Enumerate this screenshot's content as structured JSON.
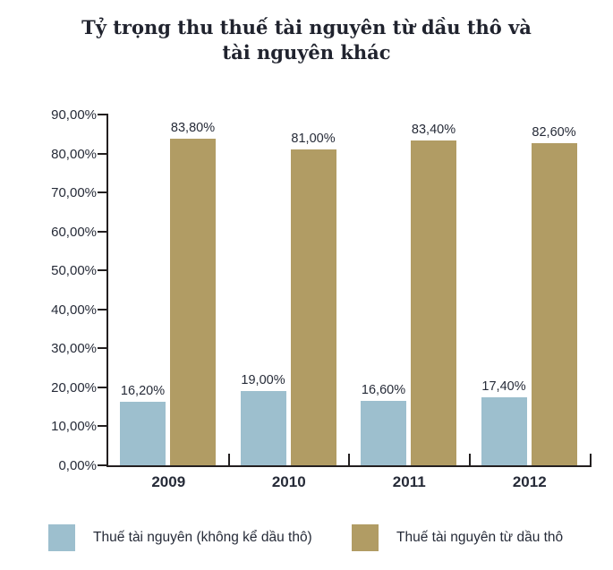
{
  "chart_data": {
    "type": "bar",
    "title": "Tỷ trọng thu thuế tài nguyên từ dầu thô và tài nguyên khác",
    "title_lines": [
      "Tỷ trọng thu thuế tài nguyên từ dầu thô và",
      "tài nguyên khác"
    ],
    "categories": [
      "2009",
      "2010",
      "2011",
      "2012"
    ],
    "series": [
      {
        "name": "Thuế tài nguyên (không kể dầu thô)",
        "color": "#9dbfce",
        "values": [
          16.2,
          19.0,
          16.6,
          17.4
        ],
        "labels": [
          "16,20%",
          "19,00%",
          "16,60%",
          "17,40%"
        ]
      },
      {
        "name": "Thuế tài nguyên từ dầu thô",
        "color": "#b19c64",
        "values": [
          83.8,
          81.0,
          83.4,
          82.6
        ],
        "labels": [
          "83,80%",
          "81,00%",
          "83,40%",
          "82,60%"
        ]
      }
    ],
    "y_axis": {
      "min": 0,
      "max": 90,
      "step": 10,
      "tick_labels": [
        "0,00%",
        "10,00%",
        "20,00%",
        "30,00%",
        "40,00%",
        "50,00%",
        "60,00%",
        "70,00%",
        "80,00%",
        "90,00%"
      ]
    },
    "grid": false,
    "legend_position": "bottom",
    "axis_color": "#231f20",
    "text_color": "#262b38"
  }
}
